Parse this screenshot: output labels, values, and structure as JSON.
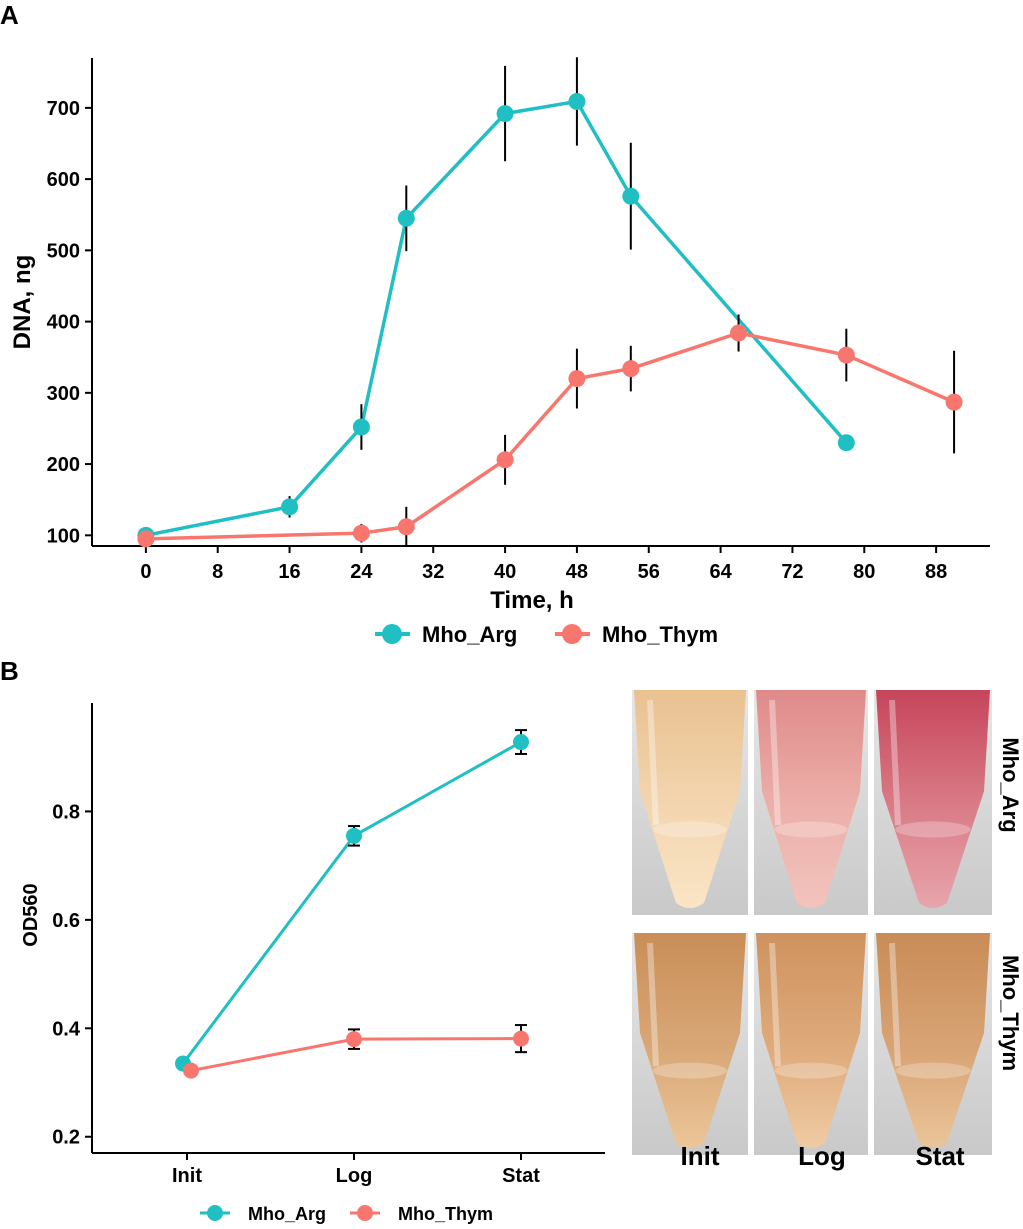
{
  "colors": {
    "arg": "#1fbfc3",
    "thym": "#f8766d",
    "axis": "#000000"
  },
  "chart_data": [
    {
      "type": "line",
      "panel": "A",
      "xlabel": "Time, h",
      "ylabel": "DNA, ng",
      "xlim": [
        -6,
        94
      ],
      "ylim": [
        85,
        770
      ],
      "xticks": [
        0,
        8,
        16,
        24,
        32,
        40,
        48,
        56,
        64,
        72,
        80,
        88
      ],
      "yticks": [
        100,
        200,
        300,
        400,
        500,
        600,
        700
      ],
      "legend_position": "bottom",
      "series": [
        {
          "name": "Mho_Arg",
          "color_key": "arg",
          "x": [
            0,
            16,
            24,
            29,
            40,
            48,
            54,
            78
          ],
          "y": [
            100,
            140,
            252,
            545,
            692,
            709,
            576,
            230
          ],
          "err": [
            0,
            15,
            32,
            46,
            67,
            62,
            75,
            0
          ]
        },
        {
          "name": "Mho_Thym",
          "color_key": "thym",
          "x": [
            0,
            24,
            29,
            40,
            48,
            54,
            66,
            78,
            90
          ],
          "y": [
            95,
            103,
            112,
            206,
            320,
            334,
            384,
            353,
            287
          ],
          "err": [
            0,
            13,
            28,
            35,
            42,
            32,
            26,
            37,
            72
          ]
        }
      ]
    },
    {
      "type": "line",
      "panel": "B",
      "xlabel": "",
      "ylabel": "OD560",
      "categories": [
        "Init",
        "Log",
        "Stat"
      ],
      "ylim": [
        0.17,
        1.0
      ],
      "yticks": [
        0.2,
        0.4,
        0.6,
        0.8
      ],
      "legend_position": "bottom",
      "series": [
        {
          "name": "Mho_Arg",
          "color_key": "arg",
          "values": [
            0.335,
            0.755,
            0.928
          ],
          "err": [
            0,
            0.018,
            0.022
          ]
        },
        {
          "name": "Mho_Thym",
          "color_key": "thym",
          "values": [
            0.322,
            0.38,
            0.381
          ],
          "err": [
            0,
            0.018,
            0.025
          ]
        }
      ]
    }
  ],
  "photos": {
    "columns": [
      "Init",
      "Log",
      "Stat"
    ],
    "rows": [
      "Mho_Arg",
      "Mho_Thym"
    ],
    "tints": [
      [
        [
          "#f3d6b0",
          "#e9c191",
          "#fae5c6"
        ],
        [
          "#edb0aa",
          "#df8a8a",
          "#f2c3bd"
        ],
        [
          "#da7d88",
          "#c6455a",
          "#e8a5ac"
        ]
      ],
      [
        [
          "#d9a877",
          "#c98e58",
          "#ebc699"
        ],
        [
          "#dfab7c",
          "#cf925e",
          "#efcba3"
        ],
        [
          "#d9a475",
          "#c88c57",
          "#eac59a"
        ]
      ]
    ]
  }
}
